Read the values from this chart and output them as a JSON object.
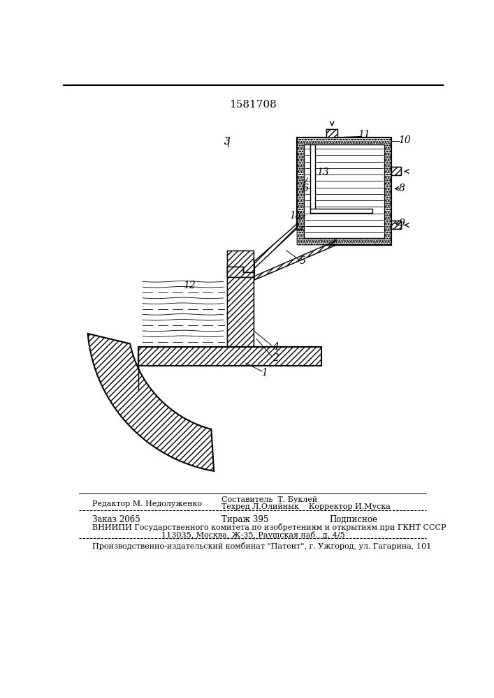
{
  "patent_number": "1581708",
  "background_color": "#ffffff",
  "line_color": "#000000",
  "figsize": [
    7.07,
    10.0
  ],
  "dpi": 100,
  "footer": {
    "editor": "Редактор М. Недолуженко",
    "composer": "Составитель  Т. Буклей",
    "techred": "Техред Л.Олийнык",
    "corrector": "Корректор И.Муска",
    "order": "Заказ 2065",
    "tirazh": "Тираж 395",
    "podpisnoe": "Подписное",
    "vniipи": "ВНИИПИ Государственного комитета по изобретениям и открытиям при ГКНТ СССР",
    "address": "113035, Москва, Ж-35, Раушская наб., д. 4/5",
    "production": "Производственно-издательский комбинат \"Патент\", г. Ужгород, ул. Гагарина, 101"
  }
}
